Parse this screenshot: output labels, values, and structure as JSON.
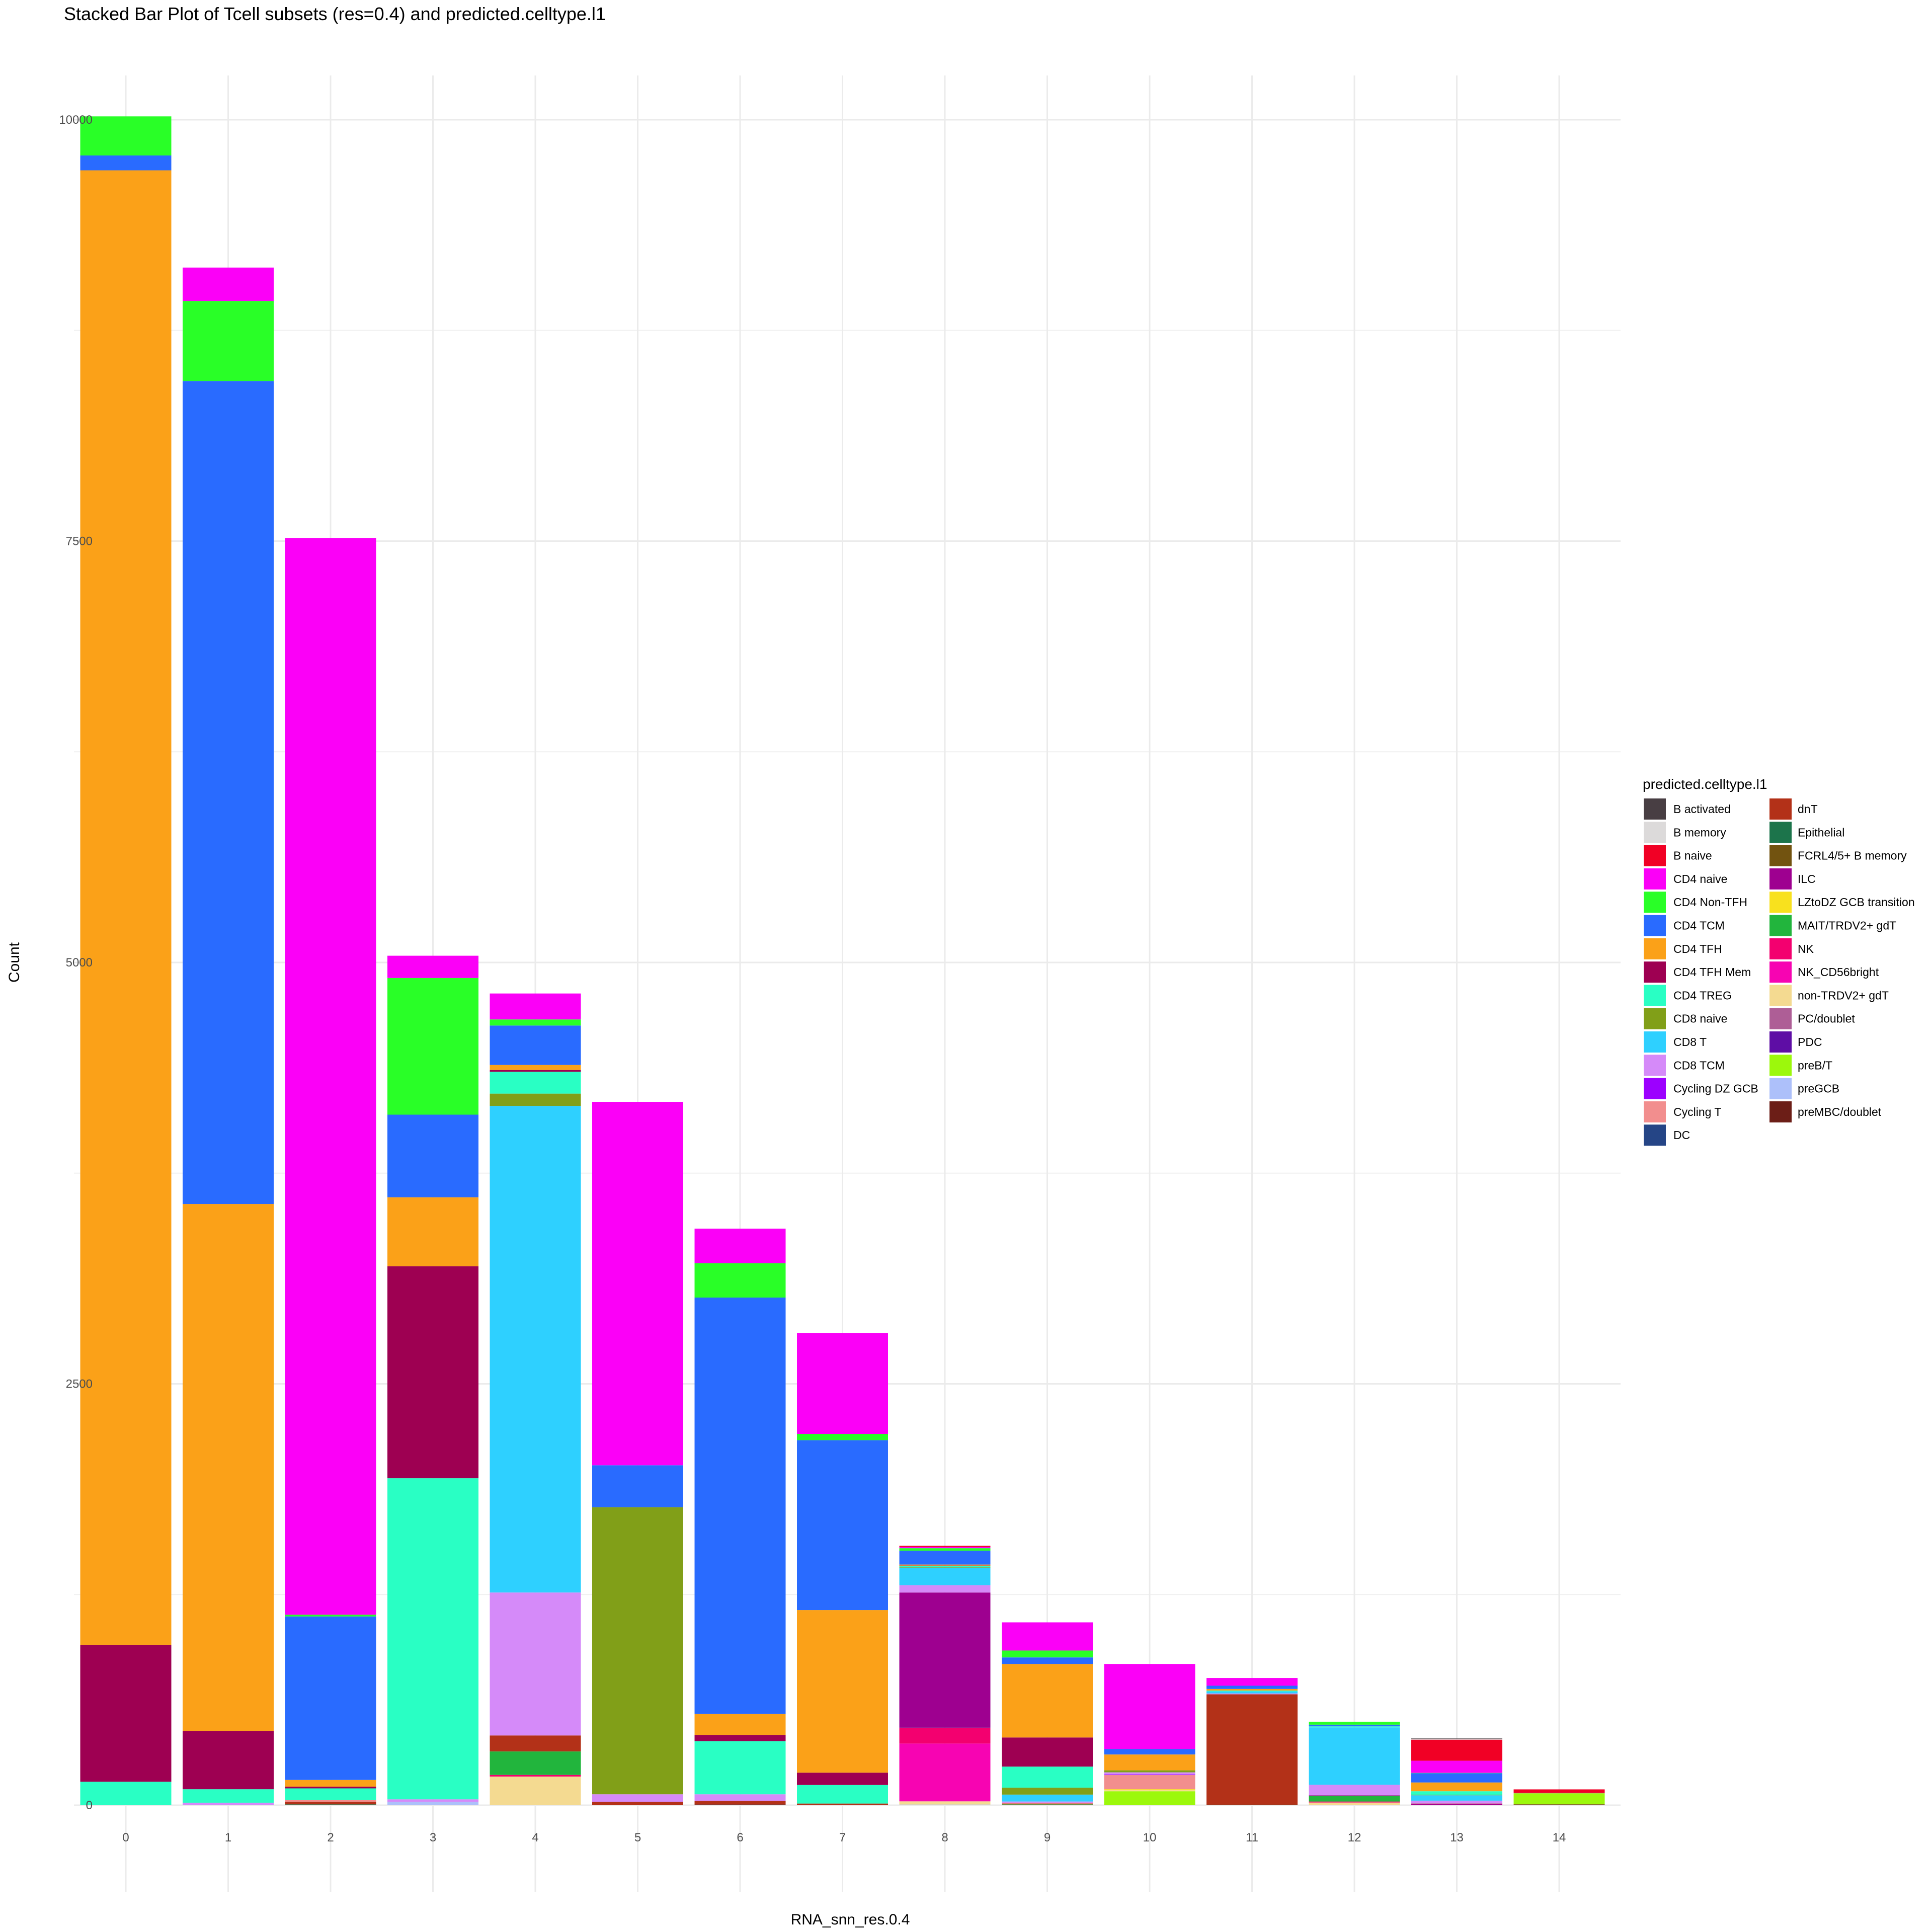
{
  "chart_data": {
    "type": "bar",
    "stacked": true,
    "title": "Stacked Bar Plot of Tcell subsets (res=0.4) and predicted.celltype.l1",
    "xlabel": "RNA_snn_res.0.4",
    "ylabel": "Count",
    "ylim": [
      0,
      10500
    ],
    "yticks": [
      0,
      2500,
      5000,
      7500,
      10000
    ],
    "grid": true,
    "legend_title": "predicted.celltype.l1",
    "legend_position": "right",
    "categories": [
      "0",
      "1",
      "2",
      "3",
      "4",
      "5",
      "6",
      "7",
      "8",
      "9",
      "10",
      "11",
      "12",
      "13",
      "14"
    ],
    "series": [
      {
        "name": "B activated",
        "color": "#483E43",
        "values": [
          0,
          0,
          0,
          0,
          0,
          0,
          0,
          0,
          0,
          0,
          0,
          0,
          0,
          3,
          0
        ]
      },
      {
        "name": "B memory",
        "color": "#DCDADA",
        "values": [
          0,
          0,
          0,
          0,
          0,
          0,
          0,
          0,
          0,
          0,
          0,
          0,
          0,
          4,
          0
        ]
      },
      {
        "name": "B naive",
        "color": "#F10025",
        "values": [
          0,
          0,
          0,
          0,
          0,
          0,
          0,
          0,
          7,
          0,
          0,
          0,
          0,
          125,
          21
        ]
      },
      {
        "name": "CD4 naive",
        "color": "#FB00F7",
        "values": [
          0,
          198,
          6389,
          132,
          154,
          2156,
          205,
          599,
          7,
          167,
          505,
          46,
          0,
          72,
          0
        ]
      },
      {
        "name": "CD4 Non-TFH",
        "color": "#29FF27",
        "values": [
          232,
          475,
          10,
          811,
          36,
          0,
          204,
          37,
          15,
          41,
          0,
          0,
          17,
          2,
          0
        ]
      },
      {
        "name": "CD4 TCM",
        "color": "#296BFF",
        "values": [
          88,
          4883,
          970,
          490,
          234,
          249,
          2471,
          1008,
          82,
          39,
          32,
          19,
          10,
          55,
          0
        ]
      },
      {
        "name": "CD4 TFH",
        "color": "#FBA118",
        "values": [
          8750,
          3128,
          40,
          409,
          30,
          0,
          124,
          965,
          6,
          436,
          94,
          10,
          0,
          52,
          0
        ]
      },
      {
        "name": "CD4 TFH Mem",
        "color": "#9E0052",
        "values": [
          811,
          344,
          10,
          1258,
          10,
          0,
          37,
          73,
          3,
          173,
          0,
          0,
          0,
          0,
          0
        ]
      },
      {
        "name": "CD4 TREG",
        "color": "#29FFC4",
        "values": [
          139,
          80,
          70,
          1905,
          130,
          0,
          315,
          110,
          6,
          125,
          0,
          5,
          6,
          21,
          0
        ]
      },
      {
        "name": "CD8 naive",
        "color": "#819F18",
        "values": [
          0,
          0,
          0,
          0,
          73,
          1703,
          0,
          0,
          3,
          41,
          12,
          0,
          0,
          3,
          0
        ]
      },
      {
        "name": "CD8 T",
        "color": "#2ED0FF",
        "values": [
          0,
          0,
          0,
          0,
          2887,
          0,
          0,
          0,
          105,
          41,
          0,
          12,
          341,
          32,
          0
        ]
      },
      {
        "name": "CD8 TCM",
        "color": "#D58AF9",
        "values": [
          0,
          15,
          0,
          15,
          848,
          45,
          40,
          0,
          43,
          7,
          13,
          5,
          62,
          17,
          0
        ]
      },
      {
        "name": "Cycling DZ GCB",
        "color": "#9C00FF",
        "values": [
          0,
          0,
          0,
          0,
          0,
          0,
          0,
          0,
          0,
          0,
          3,
          0,
          0,
          0,
          0
        ]
      },
      {
        "name": "Cycling T",
        "color": "#F28E8E",
        "values": [
          0,
          0,
          10,
          0,
          0,
          0,
          0,
          0,
          0,
          5,
          84,
          0,
          0,
          0,
          0
        ]
      },
      {
        "name": "DC",
        "color": "#254586",
        "values": [
          0,
          0,
          0,
          0,
          0,
          0,
          0,
          0,
          0,
          0,
          0,
          0,
          0,
          0,
          0
        ]
      },
      {
        "name": "dnT",
        "color": "#B33118",
        "values": [
          0,
          0,
          15,
          0,
          95,
          20,
          20,
          10,
          0,
          5,
          0,
          655,
          0,
          3,
          0
        ]
      },
      {
        "name": "Epithelial",
        "color": "#1C744B",
        "values": [
          0,
          0,
          5,
          0,
          0,
          0,
          0,
          0,
          0,
          0,
          0,
          3,
          0,
          0,
          0
        ]
      },
      {
        "name": "FCRL4/5+ B memory",
        "color": "#725310",
        "values": [
          0,
          0,
          0,
          0,
          0,
          0,
          0,
          0,
          0,
          0,
          0,
          0,
          0,
          0,
          0
        ]
      },
      {
        "name": "ILC",
        "color": "#9E0090",
        "values": [
          0,
          0,
          0,
          0,
          0,
          0,
          0,
          0,
          802,
          0,
          0,
          0,
          3,
          4,
          0
        ]
      },
      {
        "name": "LZtoDZ GCB transition",
        "color": "#F8E11E",
        "values": [
          0,
          0,
          0,
          0,
          0,
          0,
          0,
          0,
          0,
          0,
          6,
          0,
          0,
          0,
          0
        ]
      },
      {
        "name": "MAIT/TRDV2+ gdT",
        "color": "#22B53D",
        "values": [
          0,
          0,
          0,
          0,
          139,
          0,
          0,
          0,
          3,
          3,
          0,
          0,
          34,
          0,
          0
        ]
      },
      {
        "name": "NK",
        "color": "#F3006F",
        "values": [
          0,
          0,
          0,
          0,
          10,
          0,
          0,
          0,
          91,
          0,
          0,
          0,
          6,
          3,
          0
        ]
      },
      {
        "name": "NK_CD56bright",
        "color": "#F704B2",
        "values": [
          0,
          0,
          0,
          0,
          0,
          0,
          0,
          0,
          343,
          0,
          0,
          0,
          0,
          0,
          0
        ]
      },
      {
        "name": "non-TRDV2+ gdT",
        "color": "#F4DA91",
        "values": [
          0,
          0,
          0,
          0,
          170,
          0,
          0,
          0,
          19,
          0,
          6,
          0,
          16,
          0,
          0
        ]
      },
      {
        "name": "PC/doublet",
        "color": "#AE5E96",
        "values": [
          0,
          0,
          0,
          0,
          0,
          0,
          0,
          0,
          0,
          2,
          0,
          0,
          0,
          0,
          2
        ]
      },
      {
        "name": "PDC",
        "color": "#5E0DA5",
        "values": [
          0,
          0,
          0,
          0,
          0,
          0,
          0,
          0,
          0,
          0,
          0,
          0,
          0,
          0,
          0
        ]
      },
      {
        "name": "preB/T",
        "color": "#9CF80C",
        "values": [
          0,
          0,
          0,
          0,
          0,
          0,
          0,
          0,
          0,
          0,
          83,
          0,
          0,
          0,
          66
        ]
      },
      {
        "name": "preGCB",
        "color": "#ADC0FA",
        "values": [
          0,
          0,
          0,
          20,
          0,
          0,
          0,
          0,
          4,
          0,
          0,
          0,
          0,
          0,
          0
        ]
      },
      {
        "name": "preMBC/doublet",
        "color": "#6C1E17",
        "values": [
          0,
          0,
          0,
          0,
          0,
          0,
          5,
          0,
          0,
          0,
          0,
          0,
          0,
          0,
          5
        ]
      }
    ]
  }
}
